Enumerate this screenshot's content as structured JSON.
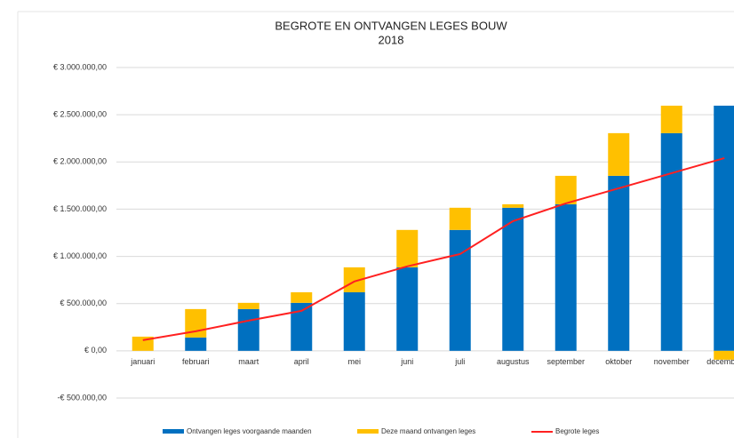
{
  "chart_data": {
    "type": "stacked_bar_line",
    "title": "BEGROTE EN ONTVANGEN LEGES BOUW",
    "subtitle": "2018",
    "categories": [
      "januari",
      "februari",
      "maart",
      "april",
      "mei",
      "juni",
      "juli",
      "augustus",
      "september",
      "oktober",
      "november",
      "december"
    ],
    "series": [
      {
        "name": "Ontvangen leges voorgaande maanden",
        "color": "#0070c0",
        "kind": "bar",
        "values": [
          0,
          141000,
          442000,
          508000,
          620000,
          884000,
          1280000,
          1515000,
          1552000,
          1853000,
          2305000,
          2596000
        ]
      },
      {
        "name": "Deze maand ontvangen leges",
        "color": "#ffc000",
        "kind": "bar",
        "values": [
          150000,
          301000,
          66000,
          112000,
          264000,
          396000,
          235000,
          37000,
          301000,
          452000,
          291000,
          -94000
        ]
      },
      {
        "name": "Begrote leges",
        "color": "#ff2020",
        "kind": "line",
        "values": [
          113000,
          207000,
          320000,
          423000,
          734000,
          894000,
          1025000,
          1373000,
          1561000,
          1721000,
          1881000,
          2041000
        ]
      }
    ],
    "ylim": [
      -500000,
      3000000
    ],
    "yticks": [
      {
        "value": -500000,
        "label": "-€ 500.000,00"
      },
      {
        "value": 0,
        "label": "€ 0,00"
      },
      {
        "value": 500000,
        "label": "€ 500.000,00"
      },
      {
        "value": 1000000,
        "label": "€ 1.000.000,00"
      },
      {
        "value": 1500000,
        "label": "€ 1.500.000,00"
      },
      {
        "value": 2000000,
        "label": "€ 2.000.000,00"
      },
      {
        "value": 2500000,
        "label": "€ 2.500.000,00"
      },
      {
        "value": 3000000,
        "label": "€ 3.000.000,00"
      }
    ],
    "grid": true
  }
}
